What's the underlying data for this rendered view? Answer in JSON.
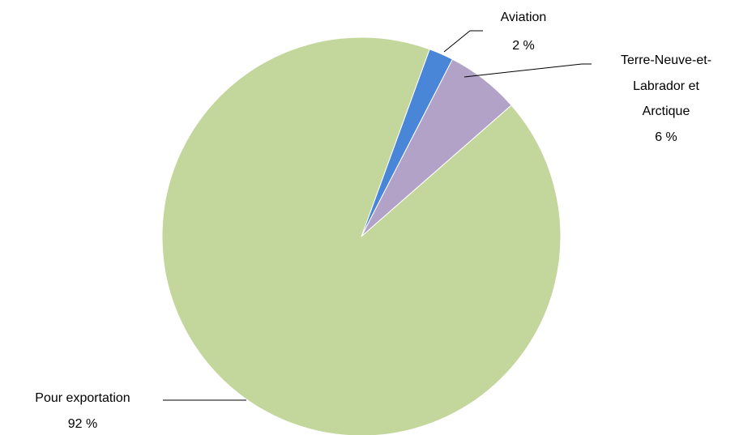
{
  "chart_data": {
    "type": "pie",
    "title": "",
    "start_angle_deg": 70,
    "direction": "clockwise",
    "slices": [
      {
        "label": "Aviation",
        "value": 2,
        "value_label": "2 %",
        "color": "#4a86d8"
      },
      {
        "label": "Terre-Neuve-et-Labrador et Arctique",
        "label_lines": [
          "Terre-Neuve-et-",
          "Labrador et",
          "Arctique"
        ],
        "value": 6,
        "value_label": "6 %",
        "color": "#b3a2c8"
      },
      {
        "label": "Pour exportation",
        "value": 92,
        "value_label": "92 %",
        "color": "#c3d69b"
      }
    ]
  }
}
